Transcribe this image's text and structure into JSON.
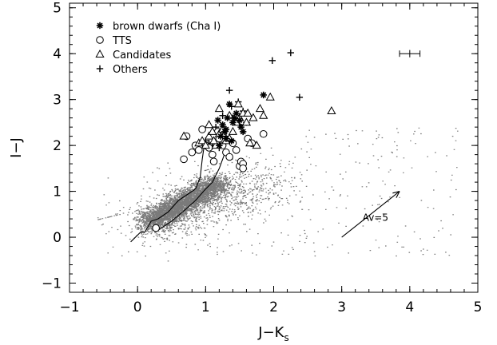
{
  "chart_data": {
    "type": "scatter",
    "xlabel": "J−K",
    "xlabel_sub": "s",
    "ylabel": "I−J",
    "xlim": [
      -1,
      5
    ],
    "ylim": [
      -1.2,
      5.1
    ],
    "x_ticks": [
      "−1",
      "0",
      "1",
      "2",
      "3",
      "4",
      "5"
    ],
    "y_ticks": [
      "−1",
      "0",
      "1",
      "2",
      "3",
      "4",
      "5"
    ],
    "legend_position": "top-left",
    "background_color": "#7a7a7a",
    "series": [
      {
        "name": "brown dwarfs (Cha I)",
        "marker": "asterisk",
        "x": [
          1.18,
          1.25,
          1.3,
          1.32,
          1.35,
          1.22,
          1.4,
          1.28,
          1.45,
          1.5,
          1.52,
          1.38,
          1.85,
          1.55,
          1.2,
          1.42,
          1.3
        ],
        "y": [
          2.55,
          2.45,
          2.35,
          2.6,
          2.9,
          2.2,
          2.5,
          2.3,
          2.7,
          2.55,
          2.4,
          2.1,
          3.1,
          2.3,
          2.0,
          2.6,
          2.15
        ]
      },
      {
        "name": "TTS",
        "marker": "circle",
        "x": [
          0.27,
          0.68,
          0.72,
          0.8,
          0.85,
          0.9,
          0.95,
          1.0,
          1.05,
          1.1,
          1.12,
          1.2,
          1.25,
          1.3,
          1.35,
          1.4,
          1.5,
          1.52,
          1.55,
          1.55,
          1.62,
          1.68,
          1.85,
          1.18,
          1.45
        ],
        "y": [
          0.2,
          1.7,
          2.2,
          1.85,
          2.0,
          1.9,
          2.35,
          2.0,
          1.95,
          1.8,
          1.65,
          2.15,
          2.0,
          1.85,
          1.75,
          2.05,
          1.55,
          1.65,
          1.6,
          1.5,
          2.15,
          2.05,
          2.25,
          2.3,
          1.9
        ]
      },
      {
        "name": "Candidates",
        "marker": "triangle",
        "x": [
          0.68,
          0.9,
          0.95,
          1.0,
          1.05,
          1.1,
          1.15,
          1.2,
          1.25,
          1.3,
          1.35,
          1.4,
          1.45,
          1.5,
          1.55,
          1.6,
          1.65,
          1.7,
          1.75,
          1.8,
          1.85,
          1.95,
          1.35,
          1.48,
          2.85,
          1.2,
          1.05,
          1.62,
          1.12
        ],
        "y": [
          2.2,
          2.05,
          2.1,
          2.0,
          2.2,
          2.3,
          2.0,
          2.25,
          2.35,
          2.1,
          2.15,
          2.3,
          2.5,
          2.6,
          2.7,
          2.5,
          2.05,
          2.6,
          2.0,
          2.8,
          2.65,
          3.05,
          2.65,
          2.9,
          2.75,
          2.8,
          2.45,
          2.7,
          2.1
        ]
      },
      {
        "name": "Others",
        "marker": "plus",
        "x": [
          1.0,
          1.1,
          1.2,
          1.3,
          1.4,
          1.5,
          1.15,
          1.25,
          1.35,
          1.45,
          1.55,
          1.05,
          1.6,
          1.98,
          2.25,
          2.38,
          1.38,
          1.48,
          1.2
        ],
        "y": [
          2.1,
          2.0,
          2.3,
          2.2,
          2.6,
          2.45,
          2.4,
          2.65,
          3.2,
          2.55,
          2.75,
          2.05,
          2.5,
          3.85,
          4.02,
          3.05,
          2.85,
          2.95,
          1.95
        ]
      }
    ],
    "background_cloud": {
      "description_color": "#7a7a7a"
    },
    "tracks": [
      {
        "x": [
          -0.1,
          0.05,
          0.1,
          0.2,
          0.3,
          0.45,
          0.6,
          0.75,
          0.85,
          0.92,
          0.95,
          0.98,
          1.0
        ],
        "y": [
          -0.1,
          0.12,
          0.1,
          0.35,
          0.4,
          0.55,
          0.8,
          0.95,
          1.05,
          1.3,
          1.7,
          2.0,
          2.1
        ]
      },
      {
        "x": [
          0.3,
          0.5,
          0.7,
          0.85,
          1.0,
          1.1,
          1.15,
          1.2,
          1.25,
          1.3
        ],
        "y": [
          0.15,
          0.35,
          0.6,
          0.8,
          1.05,
          1.2,
          1.35,
          1.5,
          1.7,
          1.9
        ]
      }
    ],
    "error_bar": {
      "x": 4.0,
      "y": 4.0,
      "xerr": 0.15,
      "yerr": 0.08
    },
    "reddening_vector": {
      "x0": 3.0,
      "y0": 0.0,
      "x1": 3.85,
      "y1": 1.0,
      "label": "Av=5"
    }
  }
}
